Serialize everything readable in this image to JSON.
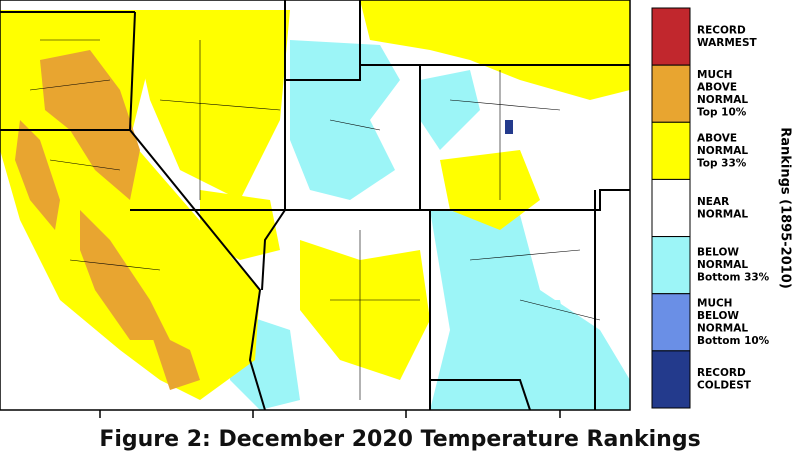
{
  "map": {
    "caption": "Figure 2: December 2020 Temperature Rankings",
    "legend_title": "Rankings (1895-2010)",
    "legend": [
      {
        "lines": [
          "RECORD",
          "WARMEST"
        ],
        "color": "#c1272d"
      },
      {
        "lines": [
          "MUCH",
          "ABOVE",
          "NORMAL",
          "Top 10%"
        ],
        "color": "#e8a530"
      },
      {
        "lines": [
          "ABOVE",
          "NORMAL",
          "Top 33%"
        ],
        "color": "#ffff00"
      },
      {
        "lines": [
          "NEAR",
          "NORMAL"
        ],
        "color": "#ffffff"
      },
      {
        "lines": [
          "BELOW",
          "NORMAL",
          "Bottom 33%"
        ],
        "color": "#9cf5f7"
      },
      {
        "lines": [
          "MUCH",
          "BELOW",
          "NORMAL",
          "Bottom 10%"
        ],
        "color": "#6a8fe6"
      },
      {
        "lines": [
          "RECORD",
          "COLDEST"
        ],
        "color": "#233a8c"
      }
    ]
  }
}
